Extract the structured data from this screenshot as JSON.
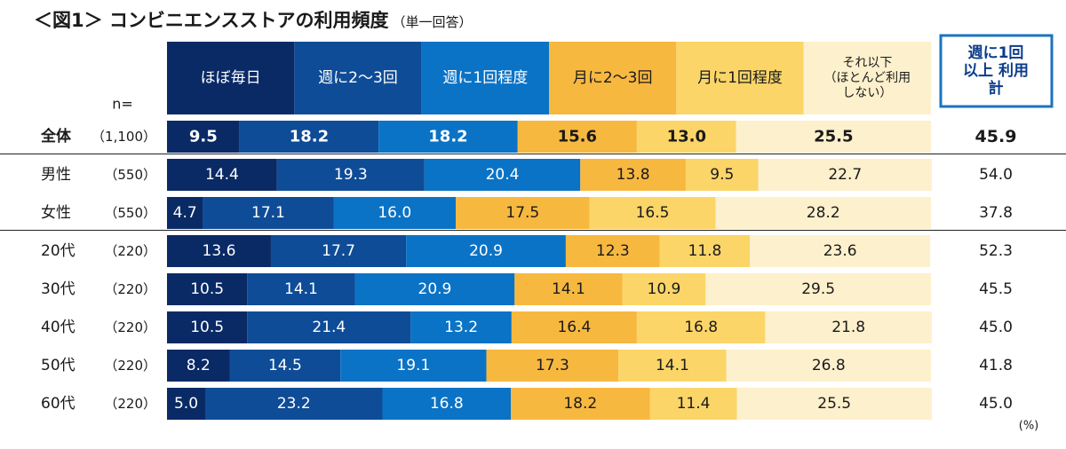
{
  "title": "＜図1＞ コンビニエンスストアの利用頻度",
  "subtitle": "（単一回答）",
  "n_label": "n=",
  "total_header": "週に1回\n以上 利用\n計",
  "unit": "(%)",
  "colors": {
    "segments": [
      "#0a2a66",
      "#0f4c97",
      "#0a73c6",
      "#f7b840",
      "#fbd568",
      "#fdf0cc"
    ],
    "segment_text": [
      "#ffffff",
      "#ffffff",
      "#ffffff",
      "#1a1a1a",
      "#1a1a1a",
      "#1a1a1a"
    ],
    "frame": "#1a73c1"
  },
  "chart_data": {
    "type": "bar",
    "orientation": "horizontal",
    "stacked": true,
    "percent": true,
    "series": [
      {
        "name": "ほぼ毎日",
        "values": [
          9.5,
          14.4,
          4.7,
          13.6,
          10.5,
          10.5,
          8.2,
          5.0
        ]
      },
      {
        "name": "週に2～3回",
        "values": [
          18.2,
          19.3,
          17.1,
          17.7,
          14.1,
          21.4,
          14.5,
          23.2
        ]
      },
      {
        "name": "週に1回程度",
        "values": [
          18.2,
          20.4,
          16.0,
          20.9,
          20.9,
          13.2,
          19.1,
          16.8
        ]
      },
      {
        "name": "月に2～3回",
        "values": [
          15.6,
          13.8,
          17.5,
          12.3,
          14.1,
          16.4,
          17.3,
          18.2
        ]
      },
      {
        "name": "月に1回程度",
        "values": [
          13.0,
          9.5,
          16.5,
          11.8,
          10.9,
          16.8,
          14.1,
          11.4
        ]
      },
      {
        "name": "それ以下\n（ほとんど利用\nしない）",
        "values": [
          25.5,
          22.7,
          28.2,
          23.6,
          29.5,
          21.8,
          26.8,
          25.5
        ]
      }
    ],
    "rows": [
      {
        "label": "全体",
        "n": "（1,100）",
        "total": "45.9",
        "bold": true
      },
      {
        "label": "男性",
        "n": "（550）",
        "total": "54.0",
        "bold": false
      },
      {
        "label": "女性",
        "n": "（550）",
        "total": "37.8",
        "bold": false
      },
      {
        "label": "20代",
        "n": "（220）",
        "total": "52.3",
        "bold": false
      },
      {
        "label": "30代",
        "n": "（220）",
        "total": "45.5",
        "bold": false
      },
      {
        "label": "40代",
        "n": "（220）",
        "total": "45.0",
        "bold": false
      },
      {
        "label": "50代",
        "n": "（220）",
        "total": "41.8",
        "bold": false
      },
      {
        "label": "60代",
        "n": "（220）",
        "total": "45.0",
        "bold": false
      }
    ],
    "xlim": [
      0,
      100
    ]
  }
}
